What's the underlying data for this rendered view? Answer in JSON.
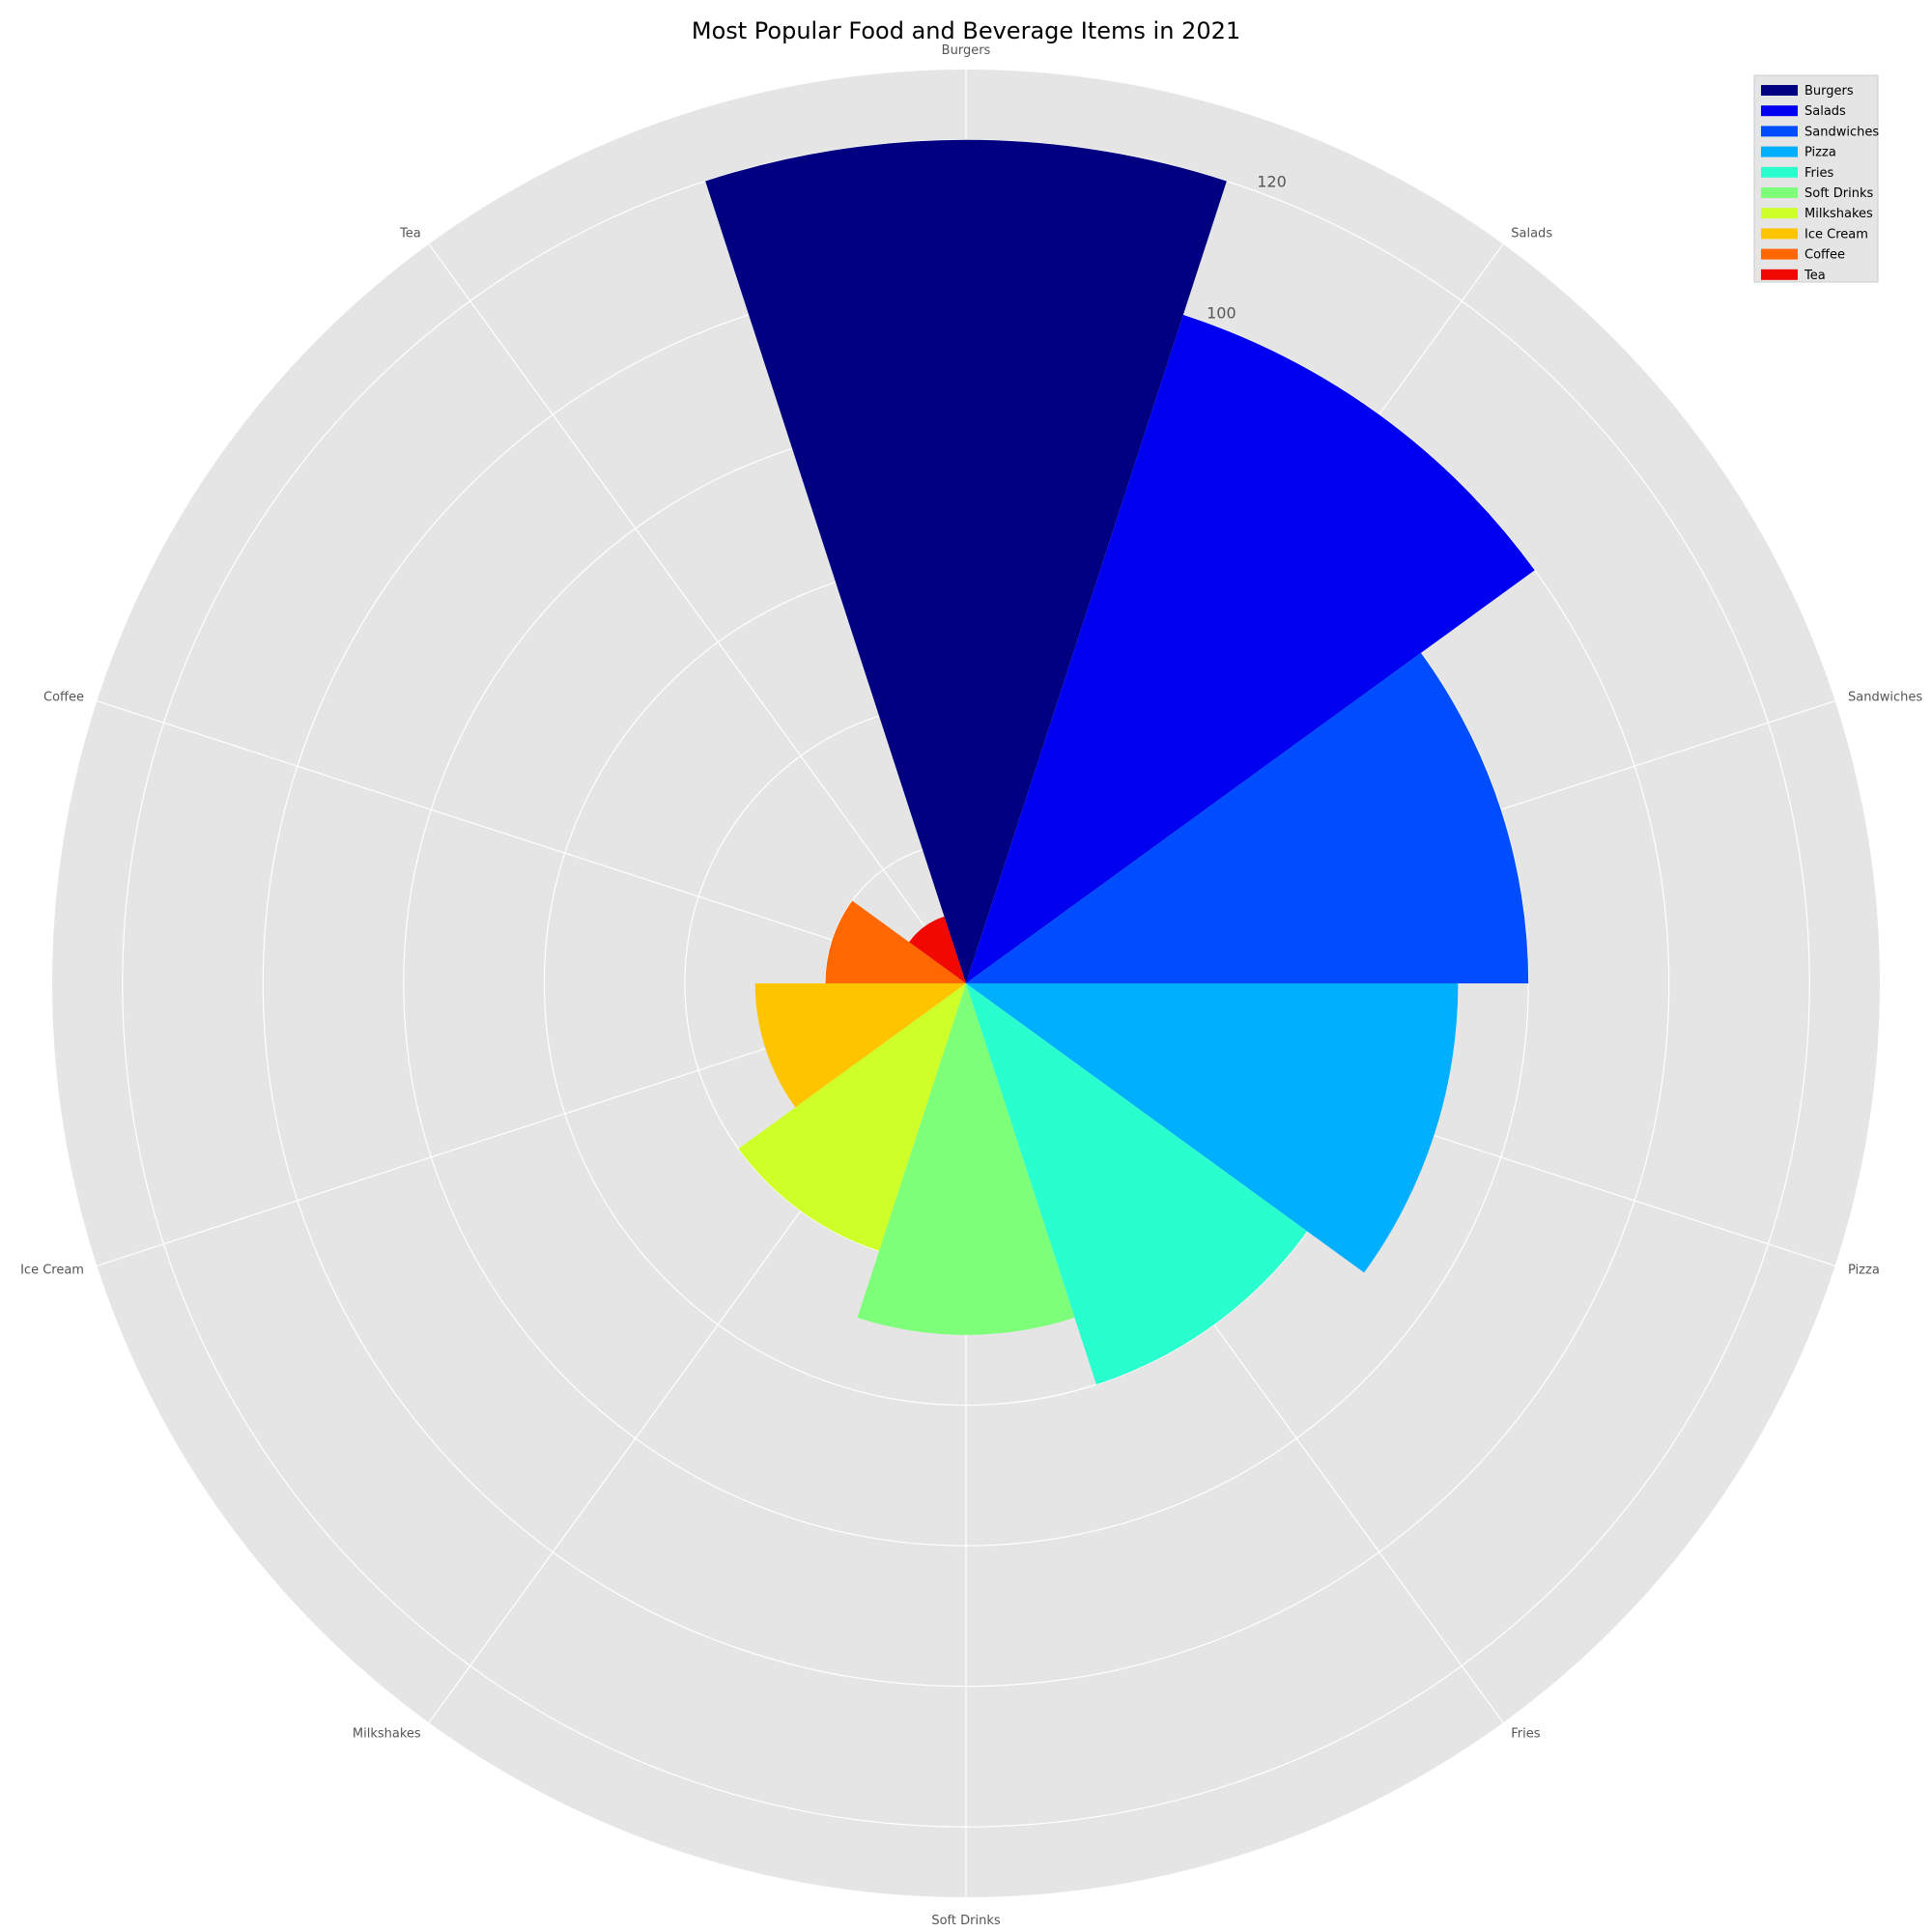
{
  "chart_data": {
    "type": "polar-bar",
    "title": "Most Popular Food and Beverage Items in 2021",
    "categories": [
      "Burgers",
      "Salads",
      "Sandwiches",
      "Pizza",
      "Fries",
      "Soft Drinks",
      "Milkshakes",
      "Ice Cream",
      "Coffee",
      "Tea"
    ],
    "values": [
      120,
      100,
      80,
      70,
      60,
      50,
      40,
      30,
      20,
      10
    ],
    "colors": [
      "#000080",
      "#0000f1",
      "#004cff",
      "#00b0ff",
      "#29ffce",
      "#7dff7a",
      "#ceff29",
      "#ffc400",
      "#ff6800",
      "#f10800"
    ],
    "rlim": [
      0,
      130
    ],
    "rticks": [
      20,
      40,
      60,
      80,
      100,
      120
    ],
    "rtick_labels_visible": [
      "100",
      "120"
    ],
    "grid": true,
    "legend_position": "upper-right",
    "background": "#e5e5e5"
  }
}
